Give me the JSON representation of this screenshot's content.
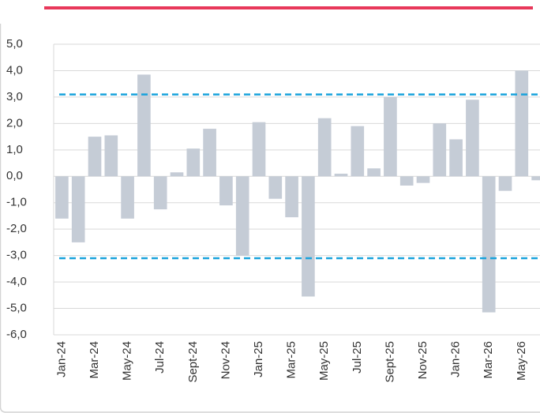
{
  "chart_data": {
    "type": "bar",
    "categories": [
      "Jan-24",
      null,
      "Mar-24",
      null,
      "May-24",
      null,
      "Jul-24",
      null,
      "Sept-24",
      null,
      "Nov-24",
      null,
      "Jan-25",
      null,
      "Mar-25",
      null,
      "May-25",
      null,
      "Jul-25",
      null,
      "Sept-25",
      null,
      "Nov-25",
      null,
      "Jan-26",
      null,
      "Mar-26",
      null,
      "May-26",
      null
    ],
    "values": [
      -1.6,
      -2.5,
      1.5,
      1.55,
      -1.6,
      3.85,
      -1.25,
      0.15,
      1.05,
      1.8,
      -1.1,
      -3.0,
      2.05,
      -0.85,
      -1.55,
      -4.55,
      2.2,
      0.1,
      1.9,
      0.3,
      3.0,
      -0.35,
      -0.25,
      2.0,
      1.4,
      2.9,
      -5.15,
      -0.55,
      4.0,
      -0.15
    ],
    "color": "#c5ccd6",
    "ylim": [
      -6,
      5
    ],
    "yticks": [
      {
        "value": -6,
        "label": "-6,0"
      },
      {
        "value": -5,
        "label": "-5,0"
      },
      {
        "value": -4,
        "label": "-4,0"
      },
      {
        "value": -3,
        "label": "-3,0"
      },
      {
        "value": -2,
        "label": "-2,0"
      },
      {
        "value": -1,
        "label": "-1,0"
      },
      {
        "value": 0,
        "label": "0,0"
      },
      {
        "value": 1,
        "label": "1,0"
      },
      {
        "value": 2,
        "label": "2,0"
      },
      {
        "value": 3,
        "label": "3,0"
      },
      {
        "value": 4,
        "label": "4,0"
      },
      {
        "value": 5,
        "label": "5,0"
      }
    ],
    "grid": true,
    "reference_lines": [
      3.1,
      -3.1
    ],
    "reference_color": "#1aa3dc"
  }
}
